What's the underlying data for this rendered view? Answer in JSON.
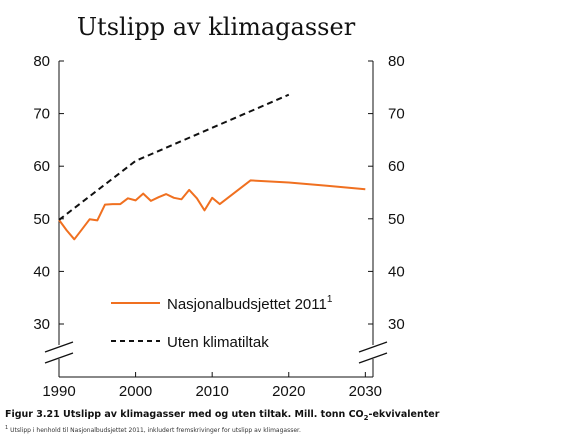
{
  "chart_data": {
    "type": "line",
    "title": "Utslipp av klimagasser",
    "x_ticks": [
      1990,
      2000,
      2010,
      2020,
      2030
    ],
    "y_ticks": [
      30,
      40,
      50,
      60,
      70,
      80
    ],
    "xlim": [
      1990,
      2031
    ],
    "ylim": [
      25,
      80
    ],
    "y_axis_break": true,
    "grid": false,
    "legend_position": "bottom-left",
    "series": [
      {
        "name": "Nasjonalbudsjettet 2011",
        "name_superscript": "1",
        "color": "#f07020",
        "style": "solid",
        "x": [
          1990,
          1991,
          1992,
          1993,
          1994,
          1995,
          1996,
          1997,
          1998,
          1999,
          2000,
          2001,
          2002,
          2003,
          2004,
          2005,
          2006,
          2007,
          2008,
          2009,
          2010,
          2011,
          2015,
          2020,
          2025,
          2030
        ],
        "y": [
          49.8,
          47.8,
          46.1,
          48.0,
          49.9,
          49.7,
          52.7,
          52.8,
          52.8,
          53.9,
          53.5,
          54.8,
          53.4,
          54.1,
          54.7,
          54.0,
          53.7,
          55.5,
          53.9,
          51.6,
          54.0,
          52.8,
          57.3,
          56.9,
          56.3,
          55.6
        ]
      },
      {
        "name": "Uten klimatiltak",
        "color": "#111111",
        "style": "dashed",
        "x": [
          1990,
          2000,
          2020
        ],
        "y": [
          49.8,
          61.0,
          73.6
        ]
      }
    ]
  },
  "caption": {
    "prefix": "Figur 3.21 Utslipp av klimagasser med og uten tiltak. Mill. tonn CO",
    "subscript": "2",
    "suffix": "-ekvivalenter"
  },
  "footnote": {
    "marker": "1",
    "text": "Utslipp i henhold til Nasjonalbudsjettet 2011, inkludert fremskrivinger for utslipp av klimagasser."
  }
}
